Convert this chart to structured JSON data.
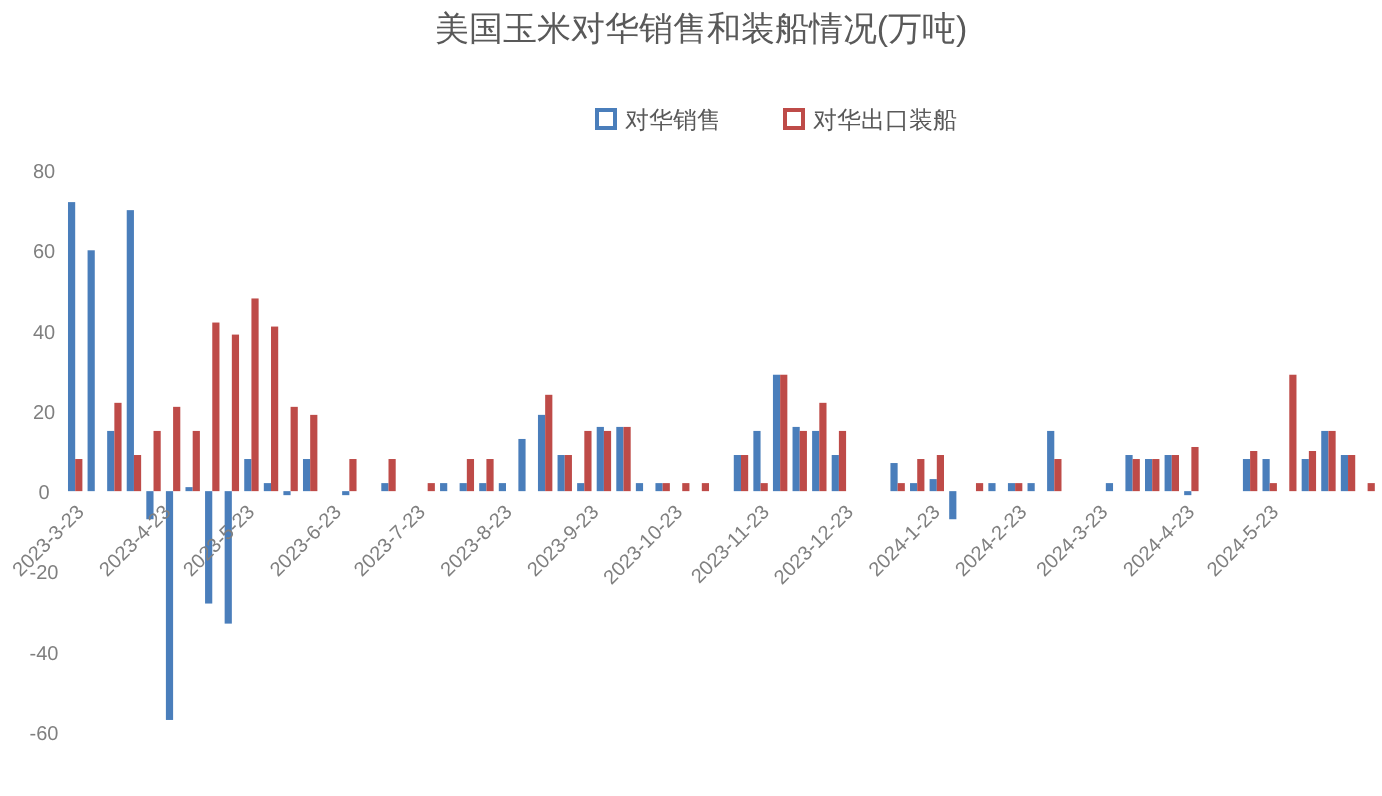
{
  "chart_data": {
    "type": "bar",
    "title": "美国玉米对华销售和装船情况(万吨)",
    "x": [
      "2023-03-23",
      "2023-03-30",
      "2023-04-06",
      "2023-04-13",
      "2023-04-20",
      "2023-04-27",
      "2023-05-04",
      "2023-05-11",
      "2023-05-18",
      "2023-05-25",
      "2023-06-01",
      "2023-06-08",
      "2023-06-15",
      "2023-06-29",
      "2023-07-13",
      "2023-07-27",
      "2023-08-03",
      "2023-08-10",
      "2023-08-17",
      "2023-08-24",
      "2023-08-31",
      "2023-09-07",
      "2023-09-14",
      "2023-09-21",
      "2023-09-28",
      "2023-10-05",
      "2023-10-12",
      "2023-10-19",
      "2023-10-26",
      "2023-11-02",
      "2023-11-16",
      "2023-11-23",
      "2023-11-30",
      "2023-12-07",
      "2023-12-14",
      "2023-12-21",
      "2024-01-11",
      "2024-01-18",
      "2024-01-25",
      "2024-02-01",
      "2024-02-08",
      "2024-02-15",
      "2024-02-22",
      "2024-02-29",
      "2024-03-07",
      "2024-03-28",
      "2024-04-04",
      "2024-04-11",
      "2024-04-18",
      "2024-04-25",
      "2024-05-16",
      "2024-05-23",
      "2024-05-30",
      "2024-06-06",
      "2024-06-13",
      "2024-06-20",
      "2024-06-27"
    ],
    "series": [
      {
        "name": "对华销售",
        "color": "#4a7ebb",
        "values": [
          72,
          60,
          15,
          70,
          -7,
          -57,
          1,
          -28,
          -33,
          8,
          2,
          -1,
          8,
          -1,
          2,
          null,
          2,
          2,
          2,
          2,
          13,
          19,
          9,
          2,
          16,
          16,
          2,
          2,
          null,
          null,
          9,
          15,
          29,
          16,
          15,
          9,
          7,
          2,
          3,
          -7,
          null,
          2,
          2,
          2,
          15,
          2,
          9,
          8,
          9,
          -1,
          8,
          8,
          null,
          8,
          15,
          9,
          null
        ]
      },
      {
        "name": "对华出口装船",
        "color": "#be4b48",
        "values": [
          8,
          null,
          22,
          9,
          15,
          21,
          15,
          42,
          39,
          48,
          41,
          21,
          19,
          8,
          8,
          2,
          null,
          8,
          8,
          null,
          null,
          24,
          9,
          15,
          15,
          16,
          null,
          2,
          2,
          2,
          9,
          2,
          29,
          15,
          22,
          15,
          2,
          8,
          9,
          null,
          2,
          null,
          2,
          null,
          8,
          null,
          8,
          8,
          9,
          11,
          10,
          2,
          29,
          10,
          15,
          9,
          2
        ]
      }
    ],
    "xlim": [
      "2023-03-19",
      "2024-06-30"
    ],
    "xticks": [
      {
        "value": "2023-03-23",
        "label": "2023-3-23"
      },
      {
        "value": "2023-04-23",
        "label": "2023-4-23"
      },
      {
        "value": "2023-05-23",
        "label": "2023-5-23"
      },
      {
        "value": "2023-06-23",
        "label": "2023-6-23"
      },
      {
        "value": "2023-07-23",
        "label": "2023-7-23"
      },
      {
        "value": "2023-08-23",
        "label": "2023-8-23"
      },
      {
        "value": "2023-09-23",
        "label": "2023-9-23"
      },
      {
        "value": "2023-10-23",
        "label": "2023-10-23"
      },
      {
        "value": "2023-11-23",
        "label": "2023-11-23"
      },
      {
        "value": "2023-12-23",
        "label": "2023-12-23"
      },
      {
        "value": "2024-01-23",
        "label": "2024-1-23"
      },
      {
        "value": "2024-02-23",
        "label": "2024-2-23"
      },
      {
        "value": "2024-03-23",
        "label": "2024-3-23"
      },
      {
        "value": "2024-04-23",
        "label": "2024-4-23"
      },
      {
        "value": "2024-05-23",
        "label": "2024-5-23"
      }
    ],
    "ylim": [
      -60,
      80
    ],
    "yticks": [
      -60,
      -40,
      -20,
      0,
      20,
      40,
      60,
      80
    ],
    "legend": "top",
    "grid": false
  }
}
